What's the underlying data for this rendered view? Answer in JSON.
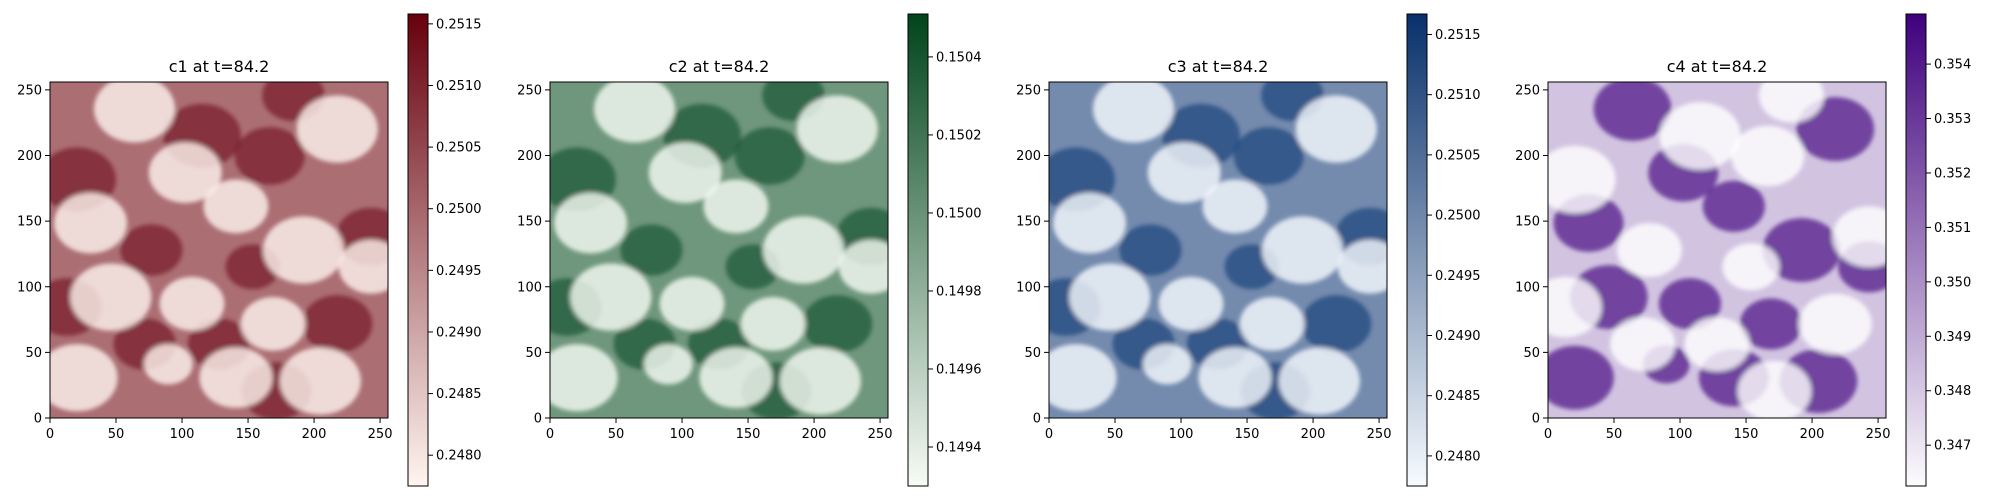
{
  "chart_data": [
    {
      "type": "heatmap",
      "title": "c1 at t=84.2",
      "colormap": "Reds",
      "x_ticks": [
        "0",
        "50",
        "100",
        "150",
        "200",
        "250"
      ],
      "y_ticks": [
        "0",
        "50",
        "100",
        "150",
        "200",
        "250"
      ],
      "xlim": [
        0,
        256
      ],
      "ylim": [
        0,
        256
      ],
      "colorbar_ticks": [
        "0.2480",
        "0.2485",
        "0.2490",
        "0.2495",
        "0.2500",
        "0.2505",
        "0.2510",
        "0.2515"
      ],
      "colorbar_range": [
        0.24775,
        0.25158
      ],
      "colors": {
        "low": "#fff5f0",
        "high": "#67000d"
      }
    },
    {
      "type": "heatmap",
      "title": "c2 at t=84.2",
      "colormap": "Greens",
      "x_ticks": [
        "0",
        "50",
        "100",
        "150",
        "200",
        "250"
      ],
      "y_ticks": [
        "0",
        "50",
        "100",
        "150",
        "200",
        "250"
      ],
      "xlim": [
        0,
        256
      ],
      "ylim": [
        0,
        256
      ],
      "colorbar_ticks": [
        "0.1494",
        "0.1496",
        "0.1498",
        "0.1500",
        "0.1502",
        "0.1504"
      ],
      "colorbar_range": [
        0.1493,
        0.15051
      ],
      "colors": {
        "low": "#f7fcf5",
        "high": "#00441b"
      }
    },
    {
      "type": "heatmap",
      "title": "c3 at t=84.2",
      "colormap": "Blues",
      "x_ticks": [
        "0",
        "50",
        "100",
        "150",
        "200",
        "250"
      ],
      "y_ticks": [
        "0",
        "50",
        "100",
        "150",
        "200",
        "250"
      ],
      "xlim": [
        0,
        256
      ],
      "ylim": [
        0,
        256
      ],
      "colorbar_ticks": [
        "0.2480",
        "0.2485",
        "0.2490",
        "0.2495",
        "0.2500",
        "0.2505",
        "0.2510",
        "0.2515"
      ],
      "colorbar_range": [
        0.24775,
        0.25167
      ],
      "colors": {
        "low": "#f7fbff",
        "high": "#08306b"
      }
    },
    {
      "type": "heatmap",
      "title": "c4 at t=84.2",
      "colormap": "Purples",
      "x_ticks": [
        "0",
        "50",
        "100",
        "150",
        "200",
        "250"
      ],
      "y_ticks": [
        "0",
        "50",
        "100",
        "150",
        "200",
        "250"
      ],
      "xlim": [
        0,
        256
      ],
      "ylim": [
        0,
        256
      ],
      "colorbar_ticks": [
        "0.347",
        "0.348",
        "0.349",
        "0.350",
        "0.351",
        "0.352",
        "0.353",
        "0.354"
      ],
      "colorbar_range": [
        0.34625,
        0.35492
      ],
      "colors": {
        "low": "#fcfbfd",
        "high": "#3f007d"
      }
    }
  ]
}
